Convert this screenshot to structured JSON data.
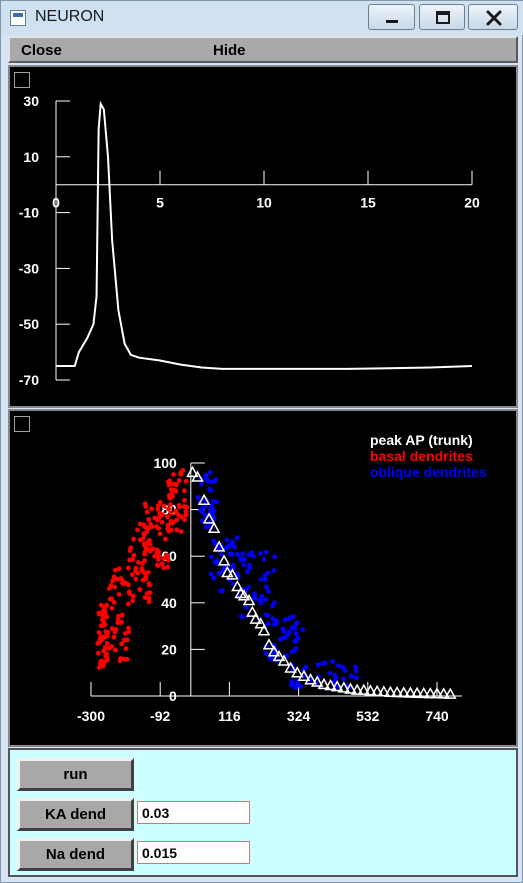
{
  "window": {
    "title": "NEURON"
  },
  "icons": {
    "minimize": "minimize-icon",
    "maximize": "maximize-icon",
    "close": "close-icon"
  },
  "menu": {
    "close_label": "Close",
    "hide_label": "Hide"
  },
  "colors": {
    "trace": "#ffffff",
    "basal": "#ff0000",
    "oblique": "#0000ff",
    "trunk": "#ffffff",
    "panel_bg": "#000000",
    "control_bg": "#ccffff"
  },
  "chart_data": [
    {
      "type": "line",
      "title": "",
      "xlabel": "",
      "ylabel": "",
      "xlim": [
        0,
        20
      ],
      "ylim": [
        -70,
        30
      ],
      "x_ticks": [
        0,
        5,
        10,
        15,
        20
      ],
      "y_ticks": [
        30,
        10,
        -10,
        -30,
        -50,
        -70
      ],
      "x_tick_labels": [
        "0",
        "5",
        "10",
        "15",
        "20"
      ],
      "y_tick_labels": [
        "30",
        "10",
        "-10",
        "-30",
        "-50",
        "-70"
      ],
      "series": [
        {
          "x": [
            0,
            0.5,
            0.9,
            1.1,
            1.5,
            1.8,
            1.95,
            2.05,
            2.15,
            2.3,
            2.5,
            2.7,
            3.0,
            3.3,
            3.6,
            4,
            5,
            6,
            7,
            8,
            10,
            12,
            14,
            16,
            18,
            20
          ],
          "y": [
            -65,
            -65,
            -65,
            -60,
            -55,
            -50,
            -40,
            20,
            29,
            27,
            10,
            -20,
            -45,
            -57,
            -61,
            -62,
            -63,
            -64.5,
            -65.5,
            -66,
            -66,
            -66,
            -66,
            -65.8,
            -65.5,
            -65
          ]
        }
      ]
    },
    {
      "type": "scatter",
      "title": "",
      "xlabel": "",
      "ylabel": "",
      "xlim": [
        -300,
        850
      ],
      "ylim": [
        0,
        100
      ],
      "x_ticks": [
        -300,
        -92,
        116,
        324,
        532,
        740
      ],
      "y_ticks": [
        0,
        20,
        40,
        60,
        80,
        100
      ],
      "x_tick_labels": [
        "-300",
        "-92",
        "116",
        "324",
        "532",
        "740"
      ],
      "y_tick_labels": [
        "0",
        "20",
        "40",
        "60",
        "80",
        "100"
      ],
      "legend": "top-right",
      "series": [
        {
          "name": "peak AP (trunk)",
          "marker": "triangle",
          "x": [
            5,
            20,
            40,
            55,
            70,
            85,
            100,
            110,
            125,
            140,
            150,
            160,
            175,
            185,
            195,
            210,
            220,
            235,
            250,
            265,
            280,
            300,
            320,
            340,
            360,
            380,
            400,
            420,
            440,
            460,
            480,
            500,
            520,
            540,
            560,
            580,
            600,
            620,
            640,
            660,
            680,
            700,
            720,
            740,
            760,
            780
          ],
          "y": [
            96,
            94,
            84,
            76,
            72,
            64,
            58,
            53,
            52,
            47,
            44,
            43,
            41,
            36,
            33,
            31,
            28,
            22,
            19,
            17,
            15,
            12,
            10,
            8.5,
            7,
            6,
            5,
            4.5,
            4,
            3.5,
            3,
            2.5,
            2.5,
            2.2,
            2,
            1.8,
            1.6,
            1.5,
            1.4,
            1.3,
            1.2,
            1.1,
            1,
            1,
            0.9,
            0.8
          ]
        }
      ],
      "scatter_clouds": [
        {
          "name": "basal dendrites",
          "x_range": [
            -280,
            -10
          ],
          "ranges": [
            {
              "x": [
                -280,
                -250
              ],
              "y": [
                12,
                40
              ]
            },
            {
              "x": [
                -250,
                -180
              ],
              "y": [
                15,
                55
              ]
            },
            {
              "x": [
                -190,
                -120
              ],
              "y": [
                40,
                75
              ]
            },
            {
              "x": [
                -140,
                -60
              ],
              "y": [
                55,
                85
              ]
            },
            {
              "x": [
                -70,
                -10
              ],
              "y": [
                70,
                98
              ]
            }
          ],
          "count": 240
        },
        {
          "name": "oblique dendrites",
          "ranges": [
            {
              "x": [
                20,
                80
              ],
              "y": [
                72,
                96
              ]
            },
            {
              "x": [
                60,
                160
              ],
              "y": [
                45,
                68
              ]
            },
            {
              "x": [
                140,
                260
              ],
              "y": [
                30,
                62
              ]
            },
            {
              "x": [
                220,
                340
              ],
              "y": [
                15,
                35
              ]
            },
            {
              "x": [
                300,
                500
              ],
              "y": [
                3,
                15
              ]
            }
          ],
          "count": 200
        }
      ]
    }
  ],
  "controls": {
    "run_label": "run",
    "ka_label": "KA dend",
    "ka_value": "0.03",
    "na_label": "Na dend",
    "na_value": "0.015"
  }
}
